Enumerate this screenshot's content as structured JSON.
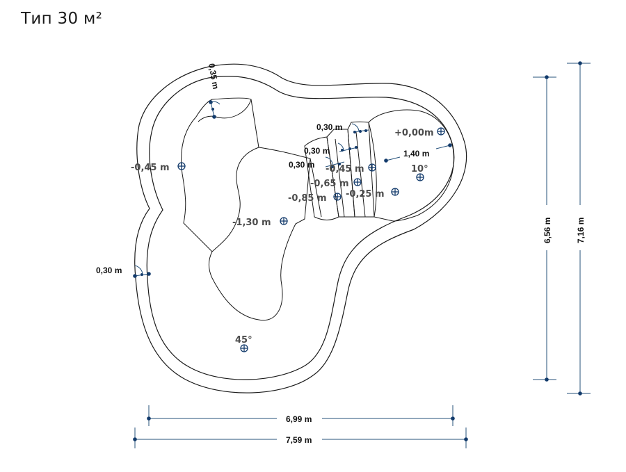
{
  "title": "Тип 30 м²",
  "levels": {
    "top": "+0,00m",
    "shelf_left": "-0,45 m",
    "step1": "-0,45 m",
    "step2": "-0,65 m",
    "step3": "-0,85 m",
    "step_right": "-0,25 m",
    "bottom": "-1,30 m"
  },
  "angles": {
    "beach": "10°",
    "wall": "45°"
  },
  "dimensions": {
    "rim_top": "0,35 m",
    "rim_left": "0,30 m",
    "step_a": "0,30 m",
    "step_b": "0,30 m",
    "step_c": "0,30 m",
    "beach_width": "1,40 m",
    "inner_width": "6,99 m",
    "outer_width": "7,59 m",
    "inner_height": "6,56 m",
    "outer_height": "7,16 m"
  }
}
